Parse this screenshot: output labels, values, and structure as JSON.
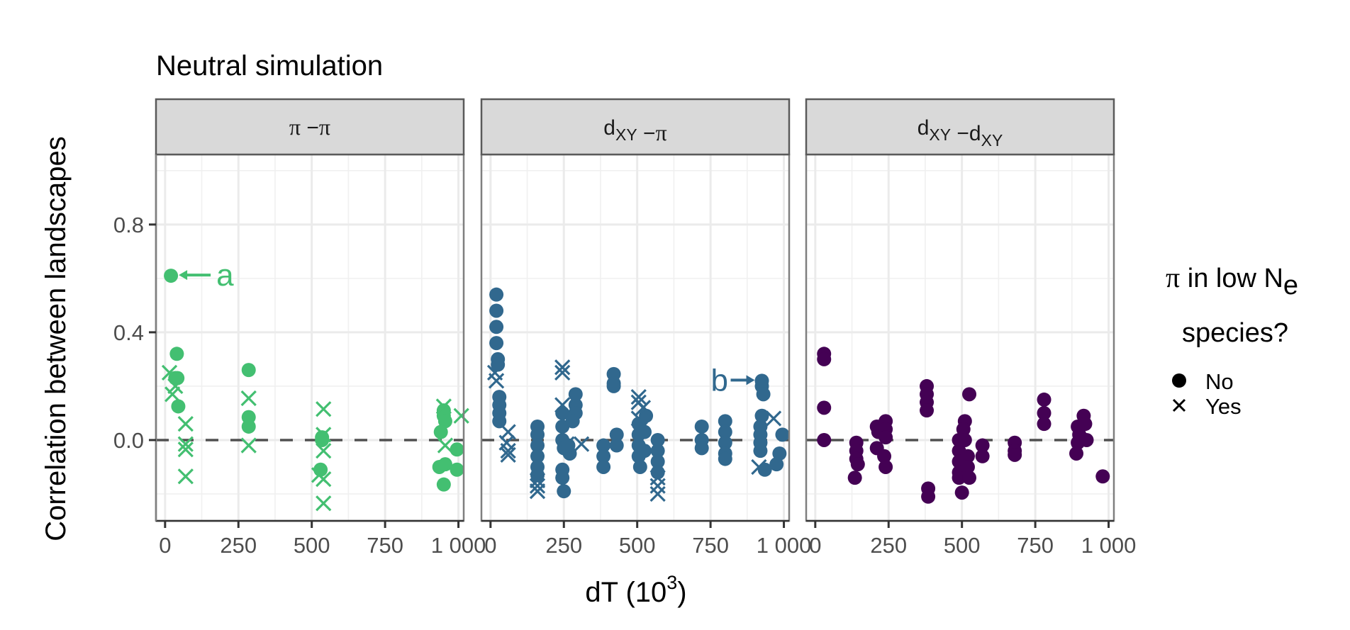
{
  "chart_data": {
    "type": "scatter",
    "title": "Neutral simulation",
    "xlabel": "dT (10^3)",
    "xlabel_base": "dT (10",
    "xlabel_sup": "3",
    "xlabel_tail": ")",
    "ylabel": "Correlation between landscapes",
    "xlim": [
      -31,
      1018
    ],
    "ylim": [
      -0.3,
      1.06
    ],
    "x_ticks": [
      0,
      250,
      500,
      750,
      1000
    ],
    "x_tick_labels": [
      "0",
      "250",
      "500",
      "750",
      "1 000"
    ],
    "y_ticks": [
      0.0,
      0.4,
      0.8
    ],
    "y_tick_labels": [
      "0.0",
      "0.4",
      "0.8"
    ],
    "grid": true,
    "reference_line": {
      "y": 0,
      "style": "dashed"
    },
    "legend": {
      "title_line1_symbol": "π",
      "title_line1_text": " in low N",
      "title_line1_sub": "e",
      "title_line2": "species?",
      "placement": "right",
      "entries": [
        {
          "label": "No",
          "shape": "circle"
        },
        {
          "label": "Yes",
          "shape": "cross"
        }
      ]
    },
    "panels": [
      {
        "strip_parts": [
          {
            "t": "π",
            "kind": "pi"
          },
          {
            "t": " −",
            "kind": "text"
          },
          {
            "t": "π",
            "kind": "pi"
          }
        ],
        "strip_label": "π − π",
        "color": "#43bf71",
        "annotation": {
          "label": "a",
          "x": 20,
          "y": 0.61,
          "direction": "left"
        },
        "series": [
          {
            "name": "No",
            "points": [
              [
                20,
                0.61
              ],
              [
                40,
                0.32
              ],
              [
                35,
                0.23
              ],
              [
                42,
                0.23
              ],
              [
                45,
                0.125
              ],
              [
                285,
                0.26
              ],
              [
                285,
                0.085
              ],
              [
                285,
                0.05
              ],
              [
                535,
                0.01
              ],
              [
                535,
                0.0
              ],
              [
                530,
                -0.11
              ],
              [
                950,
                0.11
              ],
              [
                950,
                0.09
              ],
              [
                955,
                0.07
              ],
              [
                940,
                0.03
              ],
              [
                935,
                -0.1
              ],
              [
                955,
                -0.09
              ],
              [
                995,
                -0.035
              ],
              [
                995,
                -0.11
              ],
              [
                950,
                -0.165
              ]
            ]
          },
          {
            "name": "Yes",
            "points": [
              [
                15,
                0.25
              ],
              [
                35,
                0.2
              ],
              [
                25,
                0.17
              ],
              [
                70,
                0.06
              ],
              [
                70,
                -0.015
              ],
              [
                70,
                -0.035
              ],
              [
                70,
                -0.135
              ],
              [
                285,
                0.155
              ],
              [
                285,
                -0.02
              ],
              [
                540,
                0.115
              ],
              [
                540,
                0.02
              ],
              [
                540,
                -0.04
              ],
              [
                525,
                -0.13
              ],
              [
                540,
                -0.145
              ],
              [
                540,
                -0.235
              ],
              [
                950,
                0.125
              ],
              [
                955,
                -0.02
              ],
              [
                1010,
                0.09
              ]
            ]
          }
        ]
      },
      {
        "strip_parts": [
          {
            "t": "d",
            "kind": "text"
          },
          {
            "t": "XY",
            "kind": "sub"
          },
          {
            "t": " −",
            "kind": "text"
          },
          {
            "t": "π",
            "kind": "pi"
          }
        ],
        "strip_label": "dXY − π",
        "color": "#31688e",
        "annotation": {
          "label": "b",
          "x": 925,
          "y": 0.22,
          "direction": "right"
        },
        "series": [
          {
            "name": "No",
            "points": [
              [
                20,
                0.54
              ],
              [
                20,
                0.48
              ],
              [
                20,
                0.42
              ],
              [
                20,
                0.36
              ],
              [
                25,
                0.3
              ],
              [
                25,
                0.28
              ],
              [
                30,
                0.16
              ],
              [
                30,
                0.13
              ],
              [
                30,
                0.1
              ],
              [
                30,
                0.07
              ],
              [
                160,
                0.05
              ],
              [
                160,
                0.02
              ],
              [
                160,
                -0.02
              ],
              [
                160,
                -0.06
              ],
              [
                160,
                -0.1
              ],
              [
                160,
                -0.13
              ],
              [
                245,
                -0.11
              ],
              [
                245,
                -0.14
              ],
              [
                250,
                -0.19
              ],
              [
                245,
                0.1
              ],
              [
                245,
                0.05
              ],
              [
                245,
                0.0
              ],
              [
                250,
                -0.03
              ],
              [
                290,
                0.17
              ],
              [
                290,
                0.13
              ],
              [
                290,
                0.1
              ],
              [
                280,
                0.07
              ],
              [
                270,
                -0.05
              ],
              [
                265,
                -0.02
              ],
              [
                420,
                0.245
              ],
              [
                420,
                0.21
              ],
              [
                420,
                0.2
              ],
              [
                385,
                -0.02
              ],
              [
                385,
                -0.06
              ],
              [
                385,
                -0.1
              ],
              [
                430,
                0.02
              ],
              [
                430,
                -0.02
              ],
              [
                505,
                0.06
              ],
              [
                505,
                0.02
              ],
              [
                505,
                -0.02
              ],
              [
                505,
                -0.06
              ],
              [
                510,
                -0.1
              ],
              [
                530,
                0.09
              ],
              [
                525,
                0.03
              ],
              [
                525,
                -0.04
              ],
              [
                570,
                0.0
              ],
              [
                570,
                -0.04
              ],
              [
                570,
                -0.08
              ],
              [
                570,
                -0.12
              ],
              [
                720,
                0.05
              ],
              [
                720,
                0.0
              ],
              [
                720,
                -0.03
              ],
              [
                800,
                0.07
              ],
              [
                800,
                0.03
              ],
              [
                800,
                -0.01
              ],
              [
                800,
                -0.05
              ],
              [
                800,
                -0.07
              ],
              [
                925,
                0.22
              ],
              [
                925,
                0.2
              ],
              [
                930,
                0.17
              ],
              [
                925,
                0.09
              ],
              [
                920,
                0.05
              ],
              [
                920,
                0.02
              ],
              [
                920,
                -0.01
              ],
              [
                920,
                -0.04
              ],
              [
                935,
                -0.11
              ],
              [
                995,
                0.02
              ],
              [
                985,
                -0.05
              ],
              [
                975,
                -0.09
              ]
            ]
          },
          {
            "name": "Yes",
            "points": [
              [
                15,
                0.25
              ],
              [
                20,
                0.22
              ],
              [
                60,
                0.03
              ],
              [
                55,
                -0.01
              ],
              [
                60,
                -0.04
              ],
              [
                60,
                -0.055
              ],
              [
                160,
                -0.15
              ],
              [
                160,
                -0.17
              ],
              [
                160,
                -0.19
              ],
              [
                245,
                0.27
              ],
              [
                245,
                0.25
              ],
              [
                245,
                0.13
              ],
              [
                260,
                -0.015
              ],
              [
                310,
                -0.015
              ],
              [
                505,
                0.16
              ],
              [
                505,
                0.14
              ],
              [
                520,
                0.12
              ],
              [
                505,
                0.08
              ],
              [
                510,
                0.04
              ],
              [
                570,
                -0.14
              ],
              [
                570,
                -0.17
              ],
              [
                570,
                -0.2
              ],
              [
                965,
                0.08
              ],
              [
                915,
                -0.1
              ]
            ]
          }
        ]
      },
      {
        "strip_parts": [
          {
            "t": "d",
            "kind": "text"
          },
          {
            "t": "XY",
            "kind": "sub"
          },
          {
            "t": " −d",
            "kind": "text"
          },
          {
            "t": "XY",
            "kind": "sub"
          }
        ],
        "strip_label": "dXY − dXY",
        "color": "#440154",
        "annotation": null,
        "series": [
          {
            "name": "No",
            "points": [
              [
                30,
                0.32
              ],
              [
                30,
                0.3
              ],
              [
                30,
                0.12
              ],
              [
                30,
                0.0
              ],
              [
                140,
                -0.01
              ],
              [
                140,
                -0.04
              ],
              [
                140,
                -0.07
              ],
              [
                145,
                -0.09
              ],
              [
                135,
                -0.14
              ],
              [
                210,
                0.05
              ],
              [
                215,
                0.03
              ],
              [
                210,
                -0.03
              ],
              [
                240,
                0.07
              ],
              [
                240,
                0.04
              ],
              [
                240,
                0.01
              ],
              [
                235,
                -0.06
              ],
              [
                240,
                -0.1
              ],
              [
                380,
                0.2
              ],
              [
                380,
                0.17
              ],
              [
                380,
                0.14
              ],
              [
                380,
                0.11
              ],
              [
                385,
                -0.18
              ],
              [
                385,
                -0.21
              ],
              [
                490,
                0.0
              ],
              [
                490,
                -0.04
              ],
              [
                490,
                -0.08
              ],
              [
                490,
                -0.12
              ],
              [
                490,
                -0.14
              ],
              [
                500,
                -0.195
              ],
              [
                510,
                0.07
              ],
              [
                505,
                0.04
              ],
              [
                510,
                0.0
              ],
              [
                520,
                -0.06
              ],
              [
                520,
                -0.1
              ],
              [
                525,
                -0.14
              ],
              [
                525,
                0.17
              ],
              [
                570,
                -0.02
              ],
              [
                570,
                -0.06
              ],
              [
                680,
                -0.01
              ],
              [
                680,
                -0.04
              ],
              [
                680,
                -0.055
              ],
              [
                780,
                0.15
              ],
              [
                780,
                0.1
              ],
              [
                780,
                0.06
              ],
              [
                895,
                0.05
              ],
              [
                900,
                0.02
              ],
              [
                895,
                -0.01
              ],
              [
                890,
                -0.05
              ],
              [
                915,
                0.09
              ],
              [
                920,
                0.06
              ],
              [
                925,
                0.0
              ],
              [
                980,
                -0.135
              ]
            ]
          },
          {
            "name": "Yes",
            "points": []
          }
        ]
      }
    ]
  }
}
